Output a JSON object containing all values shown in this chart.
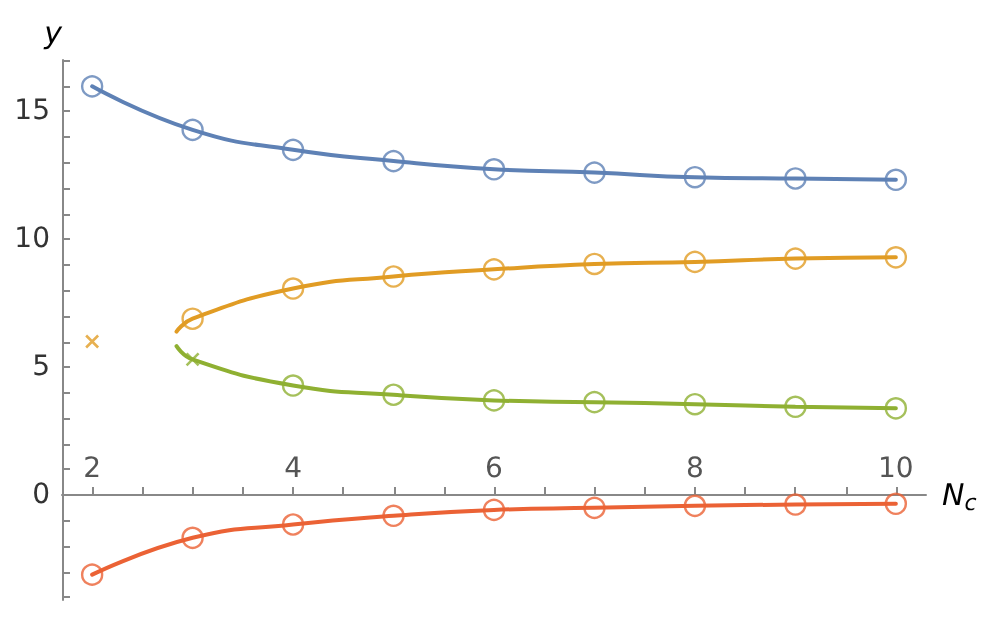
{
  "chart_data": {
    "type": "line",
    "xlabel": "N$_{c}$",
    "ylabel": "y",
    "grid": false,
    "xlim": [
      1.7,
      10.3
    ],
    "ylim": [
      -4.1,
      17
    ],
    "xticks": [
      2,
      {
        "value": 2.5,
        "label": null
      },
      {
        "value": 3,
        "label": null
      },
      {
        "value": 3.5,
        "label": null
      },
      4,
      {
        "value": 4.5,
        "label": null
      },
      {
        "value": 5,
        "label": null
      },
      {
        "value": 5.5,
        "label": null
      },
      6,
      {
        "value": 6.5,
        "label": null
      },
      {
        "value": 7,
        "label": null
      },
      {
        "value": 7.5,
        "label": null
      },
      8,
      {
        "value": 8.5,
        "label": null
      },
      {
        "value": 9,
        "label": null
      },
      {
        "value": 9.5,
        "label": null
      },
      10
    ],
    "yticks": [
      {
        "value": -4,
        "label": null
      },
      {
        "value": -3,
        "label": null
      },
      {
        "value": -2,
        "label": null
      },
      {
        "value": -1,
        "label": null
      },
      0,
      {
        "value": 1,
        "label": null
      },
      {
        "value": 2,
        "label": null
      },
      {
        "value": 3,
        "label": null
      },
      {
        "value": 4,
        "label": null
      },
      5,
      {
        "value": 6,
        "label": null
      },
      {
        "value": 7,
        "label": null
      },
      {
        "value": 8,
        "label": null
      },
      {
        "value": 9,
        "label": null
      },
      10,
      {
        "value": 11,
        "label": null
      },
      {
        "value": 12,
        "label": null
      },
      {
        "value": 13,
        "label": null
      },
      {
        "value": 14,
        "label": null
      },
      15,
      {
        "value": 16,
        "label": null
      },
      {
        "value": 17,
        "label": null
      }
    ],
    "series": [
      {
        "marker": "none",
        "line_style": "solid",
        "color": "#5e81b5",
        "x": [
          2,
          3,
          4,
          5,
          6,
          7,
          8,
          9,
          10
        ],
        "values": [
          15.97,
          14.27,
          13.49,
          13.05,
          12.73,
          12.6,
          12.42,
          12.37,
          12.32
        ]
      },
      {
        "type": "scatter",
        "marker": "circle",
        "color": "#5e81b5",
        "x": [
          2,
          3,
          4,
          5,
          6,
          7,
          8,
          9,
          10
        ],
        "values": [
          15.97,
          14.27,
          13.49,
          13.05,
          12.73,
          12.6,
          12.42,
          12.37,
          12.32
        ]
      },
      {
        "marker": "none",
        "line_style": "solid",
        "color": "#e19c24",
        "x": [
          2.84,
          3,
          4,
          5,
          6,
          7,
          8,
          9,
          10
        ],
        "values": [
          6.39,
          6.89,
          8.07,
          8.54,
          8.82,
          9.03,
          9.11,
          9.24,
          9.29
        ]
      },
      {
        "type": "scatter",
        "marker": "circle",
        "color": "#e19c24",
        "x": [
          3,
          4,
          5,
          6,
          7,
          8,
          9,
          10
        ],
        "values": [
          6.89,
          8.07,
          8.54,
          8.82,
          9.03,
          9.11,
          9.24,
          9.29
        ]
      },
      {
        "type": "scatter",
        "marker": "cross",
        "color": "#e19c24",
        "x": [
          2
        ],
        "values": [
          6.0
        ]
      },
      {
        "marker": "none",
        "line_style": "solid",
        "color": "#8fb032",
        "x": [
          2.84,
          3,
          4,
          5,
          6,
          7,
          8,
          9,
          10
        ],
        "values": [
          5.82,
          5.3,
          4.28,
          3.92,
          3.7,
          3.63,
          3.55,
          3.45,
          3.39
        ]
      },
      {
        "type": "scatter",
        "marker": "circle",
        "color": "#8fb032",
        "x": [
          4,
          5,
          6,
          7,
          8,
          9,
          10
        ],
        "values": [
          4.28,
          3.92,
          3.7,
          3.63,
          3.55,
          3.45,
          3.39
        ]
      },
      {
        "type": "scatter",
        "marker": "cross",
        "color": "#8fb032",
        "x": [
          3
        ],
        "values": [
          5.3
        ]
      },
      {
        "marker": "none",
        "line_style": "solid",
        "color": "#eb6235",
        "x": [
          2,
          3,
          4,
          5,
          6,
          7,
          8,
          9,
          10
        ],
        "values": [
          -3.11,
          -1.67,
          -1.15,
          -0.81,
          -0.58,
          -0.5,
          -0.42,
          -0.37,
          -0.34
        ]
      },
      {
        "type": "scatter",
        "marker": "circle",
        "color": "#eb6235",
        "x": [
          2,
          3,
          4,
          5,
          6,
          7,
          8,
          9,
          10
        ],
        "values": [
          -3.11,
          -1.67,
          -1.15,
          -0.81,
          -0.58,
          -0.5,
          -0.42,
          -0.37,
          -0.34
        ]
      }
    ]
  }
}
